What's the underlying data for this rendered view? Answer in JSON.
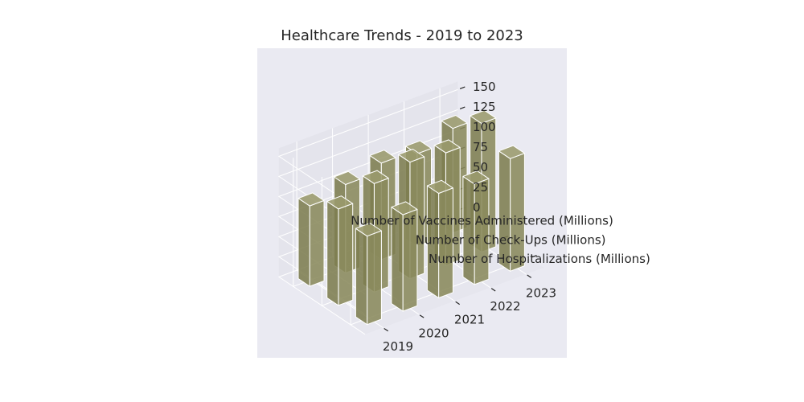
{
  "chart_data": {
    "type": "bar3d",
    "title": "Healthcare Trends - 2019 to 2023",
    "categories": [
      "2019",
      "2020",
      "2021",
      "2022",
      "2023"
    ],
    "series": [
      {
        "name": "Number of Vaccines Administered (Millions)",
        "values": [
          100,
          110,
          120,
          115,
          130
        ]
      },
      {
        "name": "Number of Check-Ups (Millions)",
        "values": [
          120,
          135,
          145,
          140,
          160
        ]
      },
      {
        "name": "Number of Hospitalizations (Millions)",
        "values": [
          110,
          120,
          130,
          125,
          140
        ]
      }
    ],
    "zticks": [
      0,
      25,
      50,
      75,
      100,
      125,
      150
    ],
    "zlim": [
      0,
      160
    ],
    "bar_color": "#8a8a5c",
    "pane_color": "#eaeaf2",
    "grid": true
  }
}
